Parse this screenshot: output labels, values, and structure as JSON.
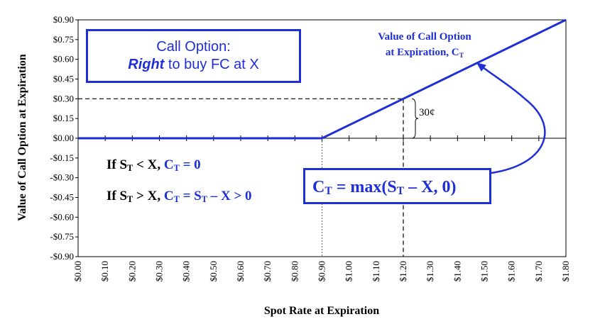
{
  "chart_data": {
    "type": "line",
    "title": "",
    "xlabel": "Spot Rate at Expiration",
    "ylabel": "Value of Call Option at Expiration",
    "xlim": [
      0.0,
      1.8
    ],
    "ylim": [
      -0.9,
      0.9
    ],
    "x_ticks": [
      "$0.00",
      "$0.10",
      "$0.20",
      "$0.30",
      "$0.40",
      "$0.50",
      "$0.60",
      "$0.70",
      "$0.80",
      "$0.90",
      "$1.00",
      "$1.10",
      "$1.20",
      "$1.30",
      "$1.40",
      "$1.50",
      "$1.60",
      "$1.70",
      "$1.80"
    ],
    "y_ticks": [
      "$0.90",
      "$0.75",
      "$0.60",
      "$0.45",
      "$0.30",
      "$0.15",
      "$0.00",
      "-$0.15",
      "-$0.30",
      "-$0.45",
      "-$0.60",
      "-$0.75",
      "-$0.90"
    ],
    "series": [
      {
        "name": "Value of Call Option at Expiration, C",
        "x": [
          0.0,
          0.9,
          1.8
        ],
        "y": [
          0.0,
          0.0,
          0.9
        ]
      }
    ],
    "strike": 0.9,
    "reference_point": {
      "x": 1.2,
      "y": 0.3
    },
    "line_color": "#1f2fd6"
  },
  "series_label": {
    "line1": "Value of Call Option",
    "line2": "at Expiration, C",
    "sub": "T"
  },
  "call_box": {
    "line1": "Call Option:",
    "right": "Right",
    "rest": " to buy FC at X"
  },
  "formula": {
    "c": "C",
    "sub_t": "T",
    "text1": " = max(S",
    "sub_t2": "T",
    "text2": " – X, 0)"
  },
  "rule1": {
    "prefix": "If S",
    "sub": "T",
    "mid": " < X, ",
    "c": "C",
    "csub": "T",
    "val": " = 0"
  },
  "rule2": {
    "prefix": "If S",
    "sub": "T",
    "mid": " > X, ",
    "c": "C",
    "csub": "T",
    "eq": " = S",
    "ssub": "T",
    "tail": " – X  > 0"
  },
  "cents_label": "30¢"
}
